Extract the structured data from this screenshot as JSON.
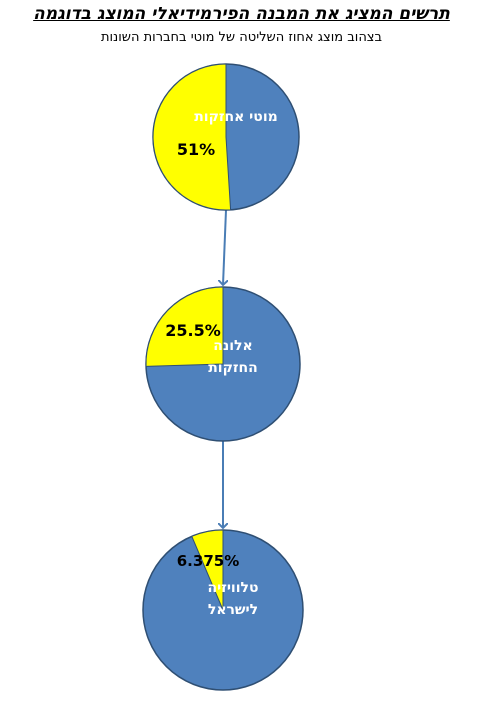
{
  "header": {
    "title": "תרשים המציג את המבנה הפירמידיאלי המוצג בדוגמה",
    "subtitle": "בצהוב מוצג אחוז השליטה של מוטי בחברות השונות"
  },
  "colors": {
    "circle_fill": "#4f81bd",
    "circle_stroke": "#2f4f73",
    "share_fill": "#ffff00",
    "arrow": "#4a7db5"
  },
  "nodes": [
    {
      "name": "מוטי אחזקות",
      "label_lines": [
        "מוטי אחזקות"
      ],
      "share_percent": 51,
      "share_label": "51%"
    },
    {
      "name": "אלונה החזקות",
      "label_lines": [
        "אלונה",
        "החזקות"
      ],
      "share_percent": 25.5,
      "share_label": "25.5%"
    },
    {
      "name": "טלוויזיה לישראל",
      "label_lines": [
        "טלוויזיה",
        "לישראל"
      ],
      "share_percent": 6.375,
      "share_label": "6.375%"
    }
  ]
}
